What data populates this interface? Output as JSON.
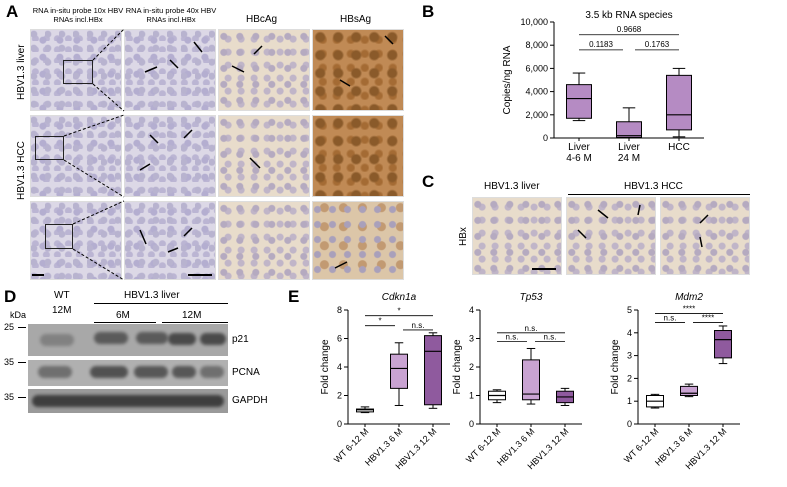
{
  "panel_a": {
    "label": "A",
    "col_headers": [
      "RNA in-situ probe 10x HBV RNAs incl.HBx",
      "RNA in-situ probe 40x HBV RNAs incl.HBx",
      "HBcAg",
      "HBsAg"
    ],
    "row_labels": [
      "HBV1.3 liver",
      "HBV1.3 HCC",
      ""
    ]
  },
  "panel_b": {
    "label": "B",
    "chart_data": {
      "type": "box",
      "title": "3.5 kb RNA species",
      "ylabel": "Copies/ng RNA",
      "ylim": [
        0,
        10000
      ],
      "yticks": [
        "0",
        "2,000",
        "4,000",
        "6,000",
        "8,000",
        "10,000"
      ],
      "categories": [
        "Liver 4-6 M",
        "Liver 24 M",
        "HCC"
      ],
      "category_lines": [
        [
          "Liver",
          "4-6 M"
        ],
        [
          "Liver",
          "24 M"
        ],
        [
          "HCC"
        ]
      ],
      "boxes": [
        {
          "min": 1500,
          "q1": 1700,
          "median": 3400,
          "q3": 4600,
          "max": 5600
        },
        {
          "min": 0,
          "q1": 50,
          "median": 200,
          "q3": 1400,
          "max": 2600
        },
        {
          "min": 100,
          "q1": 700,
          "median": 2000,
          "q3": 5400,
          "max": 6000
        }
      ],
      "pvalues": [
        {
          "from": 0,
          "to": 2,
          "text": "0.9668"
        },
        {
          "from": 0,
          "to": 1,
          "text": "0.1183"
        },
        {
          "from": 1,
          "to": 2,
          "text": "0.1763"
        }
      ]
    }
  },
  "panel_c": {
    "label": "C",
    "col_headers": [
      "HBV1.3 liver",
      "HBV1.3 HCC"
    ],
    "row_label": "HBx"
  },
  "panel_d": {
    "label": "D",
    "kda_label": "kDa",
    "groups": [
      "WT",
      "HBV1.3 liver"
    ],
    "timepoints": [
      "12M",
      "6M",
      "12M"
    ],
    "markers": [
      "25",
      "35",
      "35"
    ],
    "proteins": [
      "p21",
      "PCNA",
      "GAPDH"
    ]
  },
  "panel_e": {
    "label": "E",
    "chart_data": [
      {
        "type": "box",
        "title": "Cdkn1a",
        "ylabel": "Fold change",
        "ylim": [
          0,
          8
        ],
        "yticks": [
          "0",
          "2",
          "4",
          "6",
          "8"
        ],
        "categories": [
          "WT 6-12 M",
          "HBV1.3 6 M",
          "HBV1.3 12 M"
        ],
        "boxes": [
          {
            "min": 0.8,
            "q1": 0.85,
            "median": 1.0,
            "q3": 1.05,
            "max": 1.2
          },
          {
            "min": 1.3,
            "q1": 2.5,
            "median": 3.9,
            "q3": 4.9,
            "max": 5.7
          },
          {
            "min": 1.1,
            "q1": 1.35,
            "median": 5.1,
            "q3": 6.2,
            "max": 6.4
          }
        ],
        "signif": [
          {
            "from": 0,
            "to": 2,
            "text": "*"
          },
          {
            "from": 0,
            "to": 1,
            "text": "*"
          },
          {
            "from": 1,
            "to": 2,
            "text": "n.s."
          }
        ]
      },
      {
        "type": "box",
        "title": "Tp53",
        "ylabel": "Fold change",
        "ylim": [
          0,
          4
        ],
        "yticks": [
          "0",
          "1",
          "2",
          "3",
          "4"
        ],
        "categories": [
          "WT 6-12 M",
          "HBV1.3 6 M",
          "HBV1.3 12 M"
        ],
        "boxes": [
          {
            "min": 0.75,
            "q1": 0.85,
            "median": 1.0,
            "q3": 1.15,
            "max": 1.2
          },
          {
            "min": 0.7,
            "q1": 0.85,
            "median": 1.05,
            "q3": 2.25,
            "max": 2.65
          },
          {
            "min": 0.65,
            "q1": 0.75,
            "median": 0.95,
            "q3": 1.15,
            "max": 1.25
          }
        ],
        "signif": [
          {
            "from": 0,
            "to": 2,
            "text": "n.s."
          },
          {
            "from": 0,
            "to": 1,
            "text": "n.s."
          },
          {
            "from": 1,
            "to": 2,
            "text": "n.s."
          }
        ]
      },
      {
        "type": "box",
        "title": "Mdm2",
        "ylabel": "Fold change",
        "ylim": [
          0,
          5
        ],
        "yticks": [
          "0",
          "1",
          "2",
          "3",
          "4",
          "5"
        ],
        "categories": [
          "WT 6-12 M",
          "HBV1.3 6 M",
          "HBV1.3 12 M"
        ],
        "boxes": [
          {
            "min": 0.7,
            "q1": 0.75,
            "median": 1.0,
            "q3": 1.25,
            "max": 1.3
          },
          {
            "min": 1.2,
            "q1": 1.25,
            "median": 1.35,
            "q3": 1.65,
            "max": 1.75
          },
          {
            "min": 2.65,
            "q1": 2.9,
            "median": 3.7,
            "q3": 4.1,
            "max": 4.3
          }
        ],
        "signif": [
          {
            "from": 0,
            "to": 2,
            "text": "****"
          },
          {
            "from": 0,
            "to": 1,
            "text": "n.s."
          },
          {
            "from": 1,
            "to": 2,
            "text": "****"
          }
        ]
      }
    ]
  },
  "colors": {
    "box_light": "#c9a3d2",
    "box_mid": "#b58bc3",
    "box_dark": "#8f5a9e",
    "box_white": "#ffffff"
  }
}
